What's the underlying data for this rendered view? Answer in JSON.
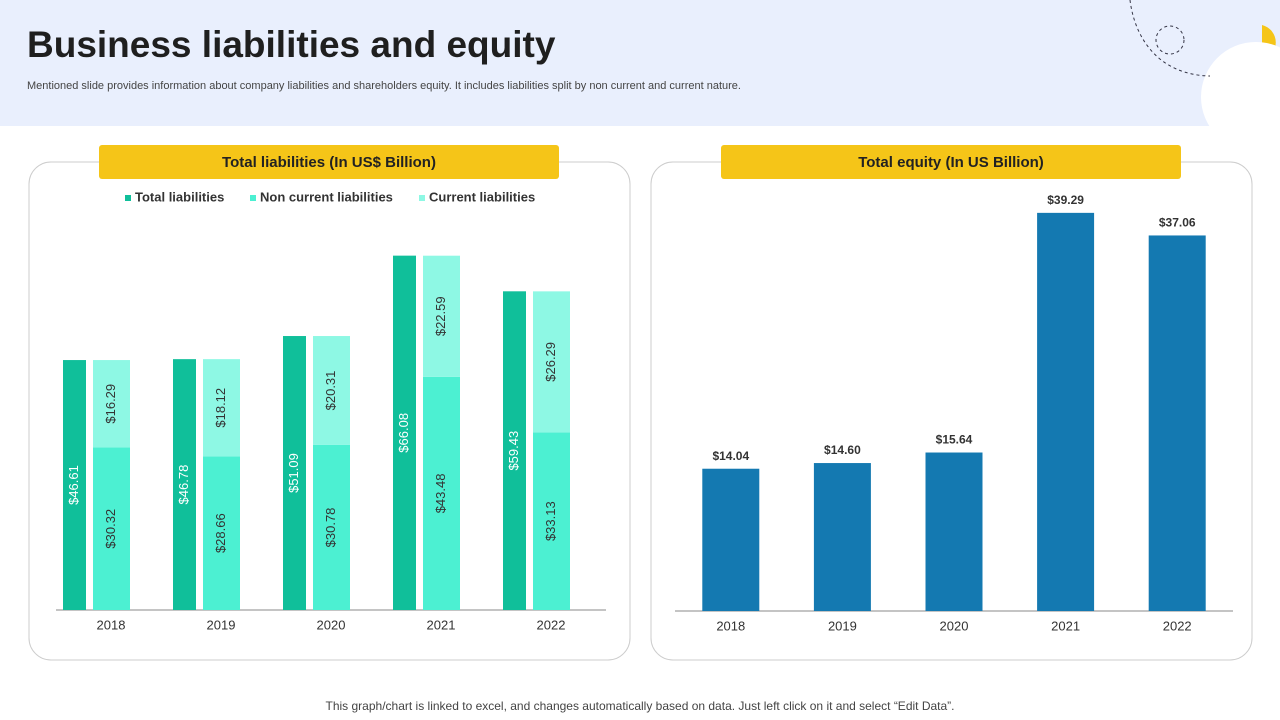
{
  "header": {
    "title": "Business liabilities and equity",
    "subtitle": "Mentioned slide provides information about company liabilities and shareholders equity. It includes liabilities split by non current and current nature."
  },
  "chart_data": [
    {
      "type": "bar",
      "title": "Total liabilities (In US$ Billion)",
      "categories": [
        "2018",
        "2019",
        "2020",
        "2021",
        "2022"
      ],
      "series": [
        {
          "name": "Total liabilities",
          "color": "#10bf9a",
          "values": [
            46.61,
            46.78,
            51.09,
            66.08,
            59.43
          ],
          "value_labels": [
            "$46.61",
            "$46.78",
            "$51.09",
            "$66.08",
            "$59.43"
          ]
        },
        {
          "name": "Non current liabilities",
          "color": "#4cf0d2",
          "stacked": true,
          "values": [
            30.32,
            28.66,
            30.78,
            43.48,
            33.13
          ],
          "value_labels": [
            "$30.32",
            "$28.66",
            "$30.78",
            "$43.48",
            "$33.13"
          ]
        },
        {
          "name": "Current liabilities",
          "color": "#8ef8e4",
          "stacked": true,
          "values": [
            16.29,
            18.12,
            20.31,
            22.59,
            26.29
          ],
          "value_labels": [
            "$16.29",
            "$18.12",
            "$20.31",
            "$22.59",
            "$26.29"
          ]
        }
      ],
      "ylim": [
        0,
        80
      ],
      "legend": "top"
    },
    {
      "type": "bar",
      "title": "Total equity (In US Billion)",
      "categories": [
        "2018",
        "2019",
        "2020",
        "2021",
        "2022"
      ],
      "values": [
        14.04,
        14.6,
        15.64,
        39.29,
        37.06
      ],
      "value_labels": [
        "$14.04",
        "$14.60",
        "$15.64",
        "$39.29",
        "$37.06"
      ],
      "color": "#1479b1",
      "ylim": [
        0,
        45
      ]
    }
  ],
  "footnote": "This graph/chart is linked to excel, and changes automatically based on data. Just left click on it and select “Edit Data”."
}
